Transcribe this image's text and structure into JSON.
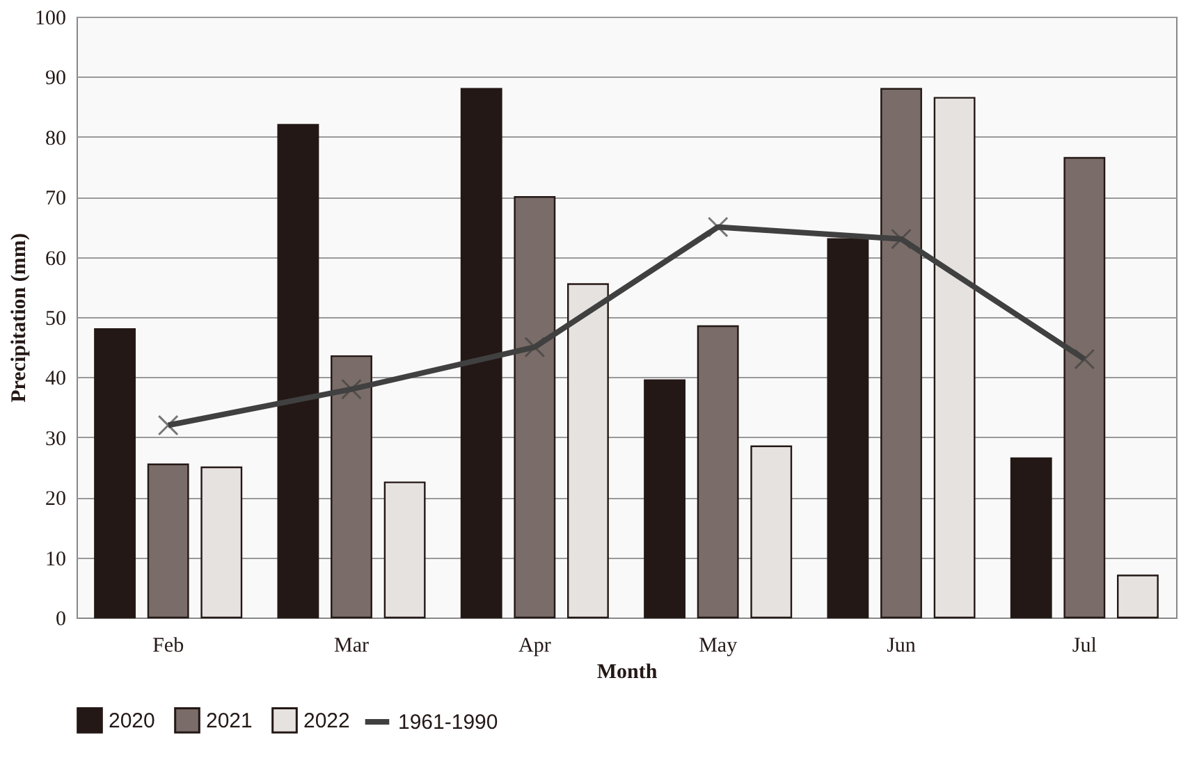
{
  "chart_data": {
    "type": "bar",
    "xlabel": "Month",
    "ylabel": "Precipitation (mm)",
    "categories": [
      "Feb",
      "Mar",
      "Apr",
      "May",
      "Jun",
      "Jul"
    ],
    "series": [
      {
        "name": "2020",
        "color": "#231815",
        "values": [
          48,
          82,
          88,
          39.5,
          63,
          26.5
        ]
      },
      {
        "name": "2021",
        "color": "#7a6c68",
        "values": [
          25.5,
          43.5,
          70,
          48.5,
          88,
          76.5
        ]
      },
      {
        "name": "2022",
        "color": "#e6e2e0",
        "values": [
          25,
          22.5,
          55.5,
          28.5,
          86.5,
          7
        ]
      },
      {
        "name": "1961-1990",
        "type": "line",
        "color": "#404040",
        "marker": "cross",
        "values": [
          32,
          38,
          45,
          65,
          63,
          43
        ]
      }
    ],
    "ylim": [
      0,
      100
    ],
    "yticks": [
      0,
      10,
      20,
      30,
      40,
      50,
      60,
      70,
      80,
      90,
      100
    ],
    "grid": "y",
    "legend": "bottom"
  }
}
